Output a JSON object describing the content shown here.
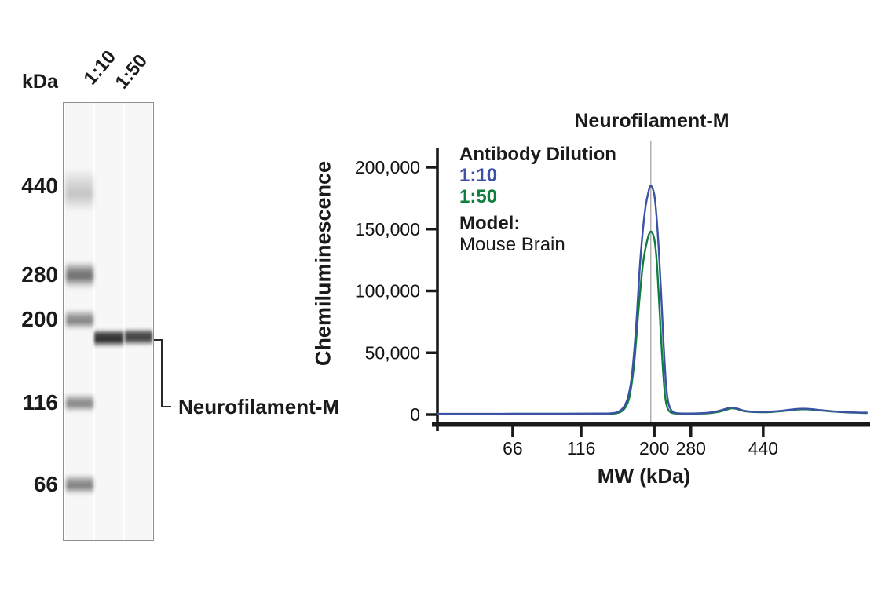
{
  "blot": {
    "kda_label": "kDa",
    "lane_labels": [
      "1:10",
      "1:50"
    ],
    "markers": [
      "440",
      "280",
      "200",
      "116",
      "66"
    ],
    "annotation": "Neurofilament-M"
  },
  "chart_data": {
    "type": "line",
    "title": "Neurofilament-M",
    "xlabel": "MW (kDa)",
    "ylabel": "Chemiluminescence",
    "legend": {
      "heading": "Antibody Dilution",
      "entries": [
        {
          "label": "1:10",
          "color": "#3b52a5"
        },
        {
          "label": "1:50",
          "color": "#107e3e"
        }
      ],
      "model_label": "Model:",
      "model_value": "Mouse Brain",
      "position": "upper-left"
    },
    "x_axis": {
      "label": "MW (kDa)",
      "ticks": [
        66,
        116,
        200,
        280,
        440
      ],
      "scale": "nonlinear-mw",
      "range_kda": [
        12,
        670
      ],
      "anchors_kda_fraction": [
        [
          12,
          0
        ],
        [
          66,
          0.175
        ],
        [
          116,
          0.334
        ],
        [
          200,
          0.504
        ],
        [
          280,
          0.589
        ],
        [
          440,
          0.757
        ],
        [
          670,
          1.0
        ]
      ]
    },
    "y_axis": {
      "label": "Chemiluminescence",
      "ticks": [
        0,
        50000,
        100000,
        150000,
        200000
      ],
      "tick_labels": [
        "0",
        "50,000",
        "100,000",
        "150,000",
        "200,000"
      ],
      "max": 214000
    },
    "grid": "off",
    "marker_line": {
      "kda": 196,
      "color": "#b0b0b0"
    },
    "peak_kda": 196,
    "series": [
      {
        "name": "1:10",
        "color": "#3b52a5",
        "peak_value": 185000,
        "points": [
          [
            12,
            550
          ],
          [
            30,
            560
          ],
          [
            50,
            580
          ],
          [
            66,
            620
          ],
          [
            85,
            650
          ],
          [
            105,
            690
          ],
          [
            125,
            740
          ],
          [
            140,
            800
          ],
          [
            150,
            1000
          ],
          [
            157,
            1800
          ],
          [
            163,
            4500
          ],
          [
            169,
            12000
          ],
          [
            174,
            30000
          ],
          [
            179,
            70000
          ],
          [
            184,
            125000
          ],
          [
            189,
            163000
          ],
          [
            193,
            179000
          ],
          [
            196,
            185000
          ],
          [
            200,
            178000
          ],
          [
            205,
            160000
          ],
          [
            210,
            133000
          ],
          [
            215,
            98000
          ],
          [
            220,
            60000
          ],
          [
            225,
            28000
          ],
          [
            230,
            11000
          ],
          [
            236,
            4200
          ],
          [
            243,
            1700
          ],
          [
            253,
            950
          ],
          [
            270,
            850
          ],
          [
            295,
            950
          ],
          [
            320,
            1500
          ],
          [
            340,
            2800
          ],
          [
            355,
            4300
          ],
          [
            368,
            5600
          ],
          [
            380,
            5100
          ],
          [
            395,
            3300
          ],
          [
            410,
            2500
          ],
          [
            425,
            2200
          ],
          [
            440,
            2100
          ],
          [
            458,
            2400
          ],
          [
            478,
            3000
          ],
          [
            498,
            3900
          ],
          [
            515,
            4500
          ],
          [
            530,
            4700
          ],
          [
            548,
            4300
          ],
          [
            568,
            3500
          ],
          [
            590,
            2700
          ],
          [
            615,
            2100
          ],
          [
            640,
            1700
          ],
          [
            668,
            1500
          ]
        ]
      },
      {
        "name": "1:50",
        "color": "#107e3e",
        "peak_value": 148000,
        "points": [
          [
            12,
            480
          ],
          [
            40,
            500
          ],
          [
            66,
            540
          ],
          [
            95,
            580
          ],
          [
            125,
            640
          ],
          [
            145,
            720
          ],
          [
            155,
            950
          ],
          [
            161,
            2000
          ],
          [
            167,
            6000
          ],
          [
            172,
            16000
          ],
          [
            177,
            42000
          ],
          [
            182,
            85000
          ],
          [
            187,
            122000
          ],
          [
            192,
            141000
          ],
          [
            196,
            148000
          ],
          [
            200,
            142000
          ],
          [
            205,
            126000
          ],
          [
            209,
            102000
          ],
          [
            214,
            68000
          ],
          [
            219,
            36000
          ],
          [
            224,
            14000
          ],
          [
            229,
            5200
          ],
          [
            235,
            2000
          ],
          [
            243,
            950
          ],
          [
            255,
            750
          ],
          [
            275,
            700
          ],
          [
            300,
            800
          ],
          [
            325,
            1300
          ],
          [
            345,
            2500
          ],
          [
            358,
            3900
          ],
          [
            370,
            5000
          ],
          [
            382,
            4500
          ],
          [
            396,
            2900
          ],
          [
            412,
            2200
          ],
          [
            428,
            1950
          ],
          [
            445,
            1900
          ],
          [
            462,
            2150
          ],
          [
            480,
            2700
          ],
          [
            500,
            3500
          ],
          [
            517,
            4100
          ],
          [
            532,
            4300
          ],
          [
            550,
            3900
          ],
          [
            570,
            3200
          ],
          [
            592,
            2500
          ],
          [
            617,
            1900
          ],
          [
            642,
            1500
          ],
          [
            668,
            1300
          ]
        ]
      }
    ]
  }
}
